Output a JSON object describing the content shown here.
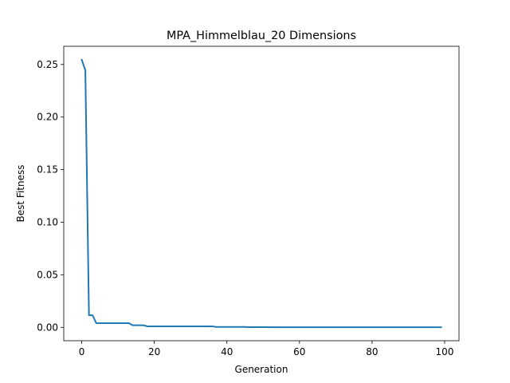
{
  "chart_data": {
    "type": "line",
    "title": "MPA_Himmelblau_20 Dimensions",
    "xlabel": "Generation",
    "ylabel": "Best Fitness",
    "xlim": [
      -4.95,
      103.95
    ],
    "ylim": [
      -0.0127,
      0.2673
    ],
    "xticks": [
      0,
      20,
      40,
      60,
      80,
      100
    ],
    "yticks": [
      0.0,
      0.05,
      0.1,
      0.15,
      0.2,
      0.25
    ],
    "xtick_labels": [
      "0",
      "20",
      "40",
      "60",
      "80",
      "100"
    ],
    "ytick_labels": [
      "0.00",
      "0.05",
      "0.10",
      "0.15",
      "0.20",
      "0.25"
    ],
    "grid": false,
    "line_color": "#1f77b4",
    "series": [
      {
        "x": [
          0,
          1,
          2,
          3,
          4,
          5,
          6,
          7,
          8,
          9,
          10,
          11,
          12,
          13,
          14,
          15,
          16,
          17,
          18,
          19,
          20,
          25,
          30,
          35,
          36,
          37,
          38,
          40,
          45,
          46,
          50,
          55,
          60,
          70,
          80,
          90,
          99
        ],
        "y": [
          0.2545,
          0.2445,
          0.0115,
          0.0115,
          0.004,
          0.004,
          0.004,
          0.004,
          0.004,
          0.004,
          0.004,
          0.004,
          0.004,
          0.004,
          0.002,
          0.002,
          0.002,
          0.002,
          0.001,
          0.001,
          0.001,
          0.001,
          0.001,
          0.001,
          0.001,
          0.0004,
          0.0004,
          0.0004,
          0.0004,
          0.0002,
          0.0002,
          0.0001,
          0.0001,
          0.0001,
          0.0001,
          0.0001,
          0.0001
        ]
      }
    ]
  }
}
